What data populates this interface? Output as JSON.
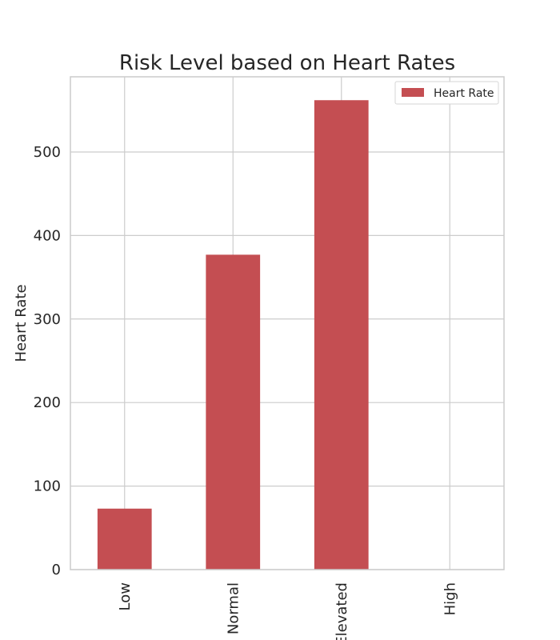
{
  "chart_data": {
    "type": "bar",
    "title": "Risk Level based on Heart Rates",
    "xlabel": "",
    "ylabel": "Heart Rate",
    "categories": [
      "Low",
      "Normal",
      "Elevated",
      "High"
    ],
    "series": [
      {
        "name": "Heart Rate",
        "values": [
          73,
          377,
          562,
          0
        ],
        "color": "#c44e52"
      }
    ],
    "ylim": [
      0,
      590
    ],
    "yticks": [
      0,
      100,
      200,
      300,
      400,
      500
    ],
    "grid": true,
    "legend_position": "top-right"
  }
}
